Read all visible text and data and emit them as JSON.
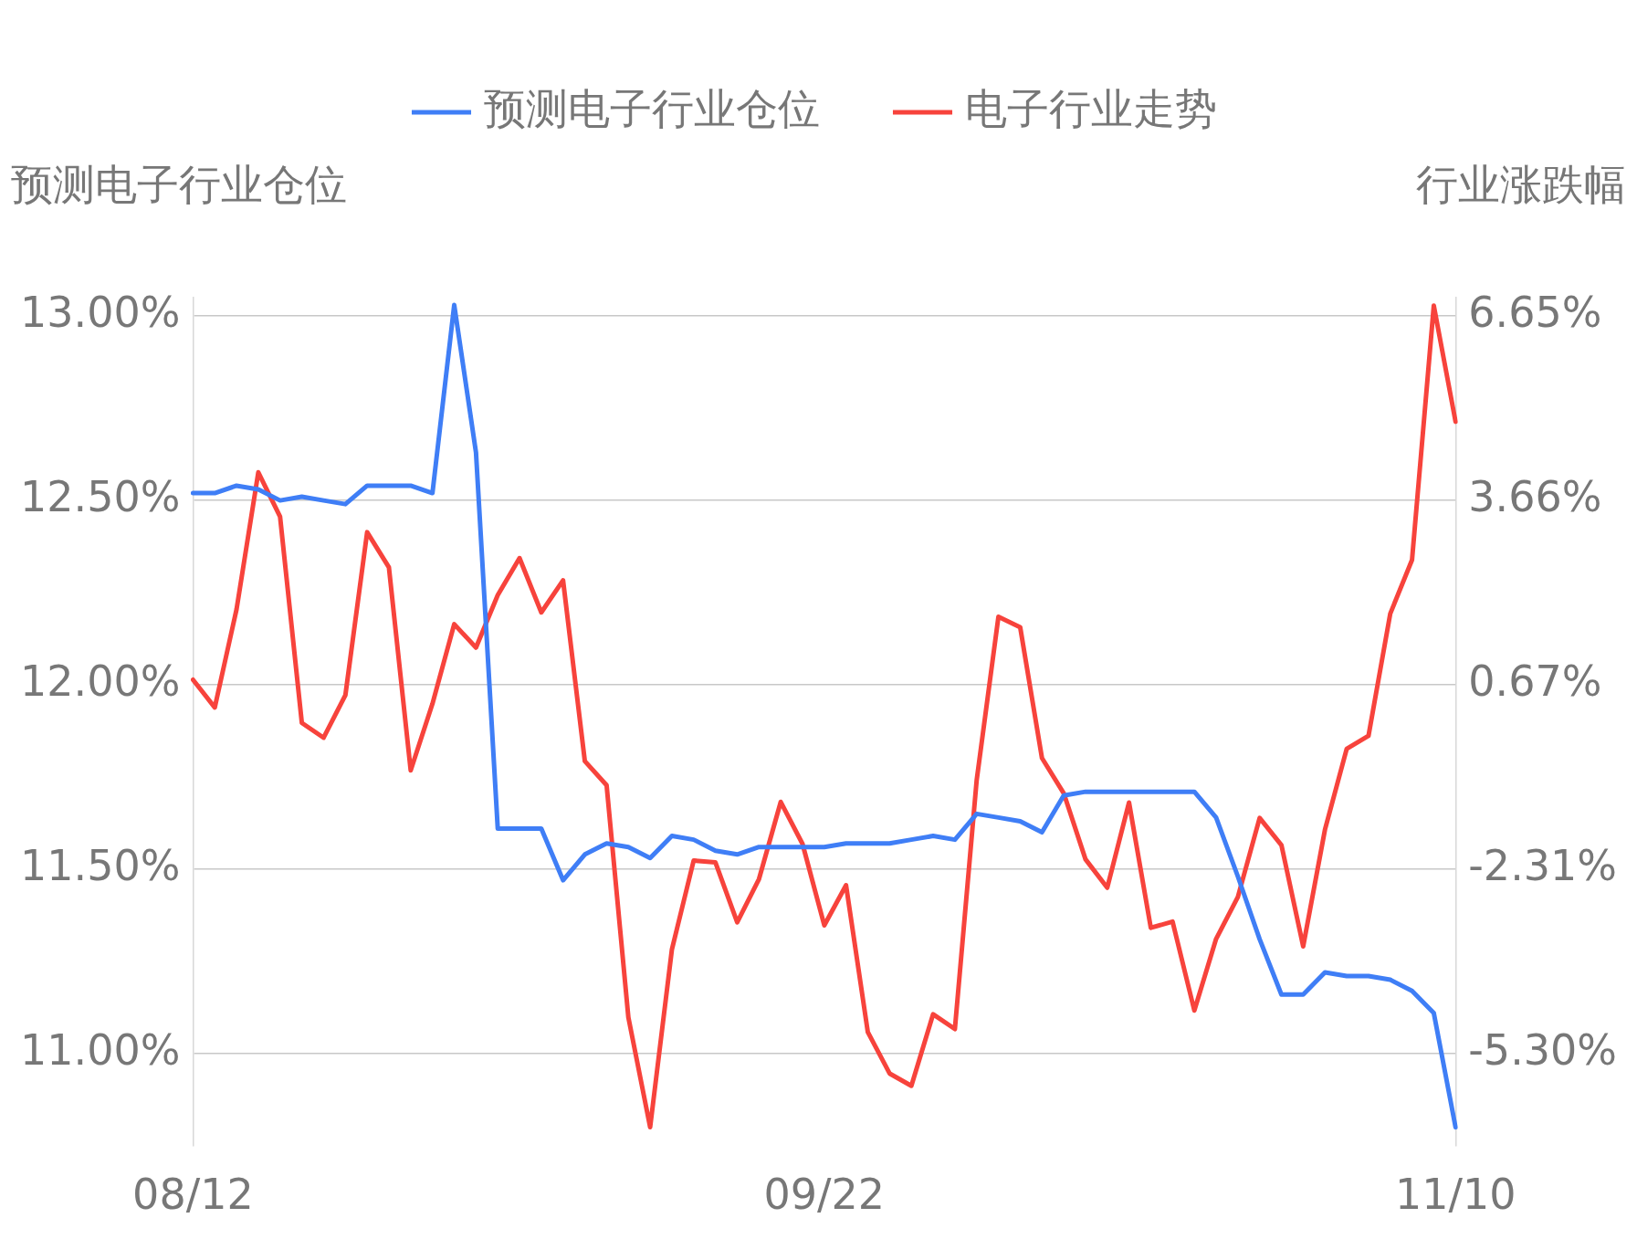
{
  "chart_data": {
    "type": "line",
    "ylabel": "预测电子行业仓位",
    "y2label": "行业涨跌幅",
    "categories": [
      "08/12",
      null,
      null,
      null,
      null,
      null,
      null,
      null,
      null,
      null,
      null,
      null,
      null,
      null,
      null,
      null,
      null,
      null,
      null,
      null,
      null,
      null,
      null,
      null,
      null,
      null,
      null,
      null,
      null,
      "09/22",
      null,
      null,
      null,
      null,
      null,
      null,
      null,
      null,
      null,
      null,
      null,
      null,
      null,
      null,
      null,
      null,
      null,
      null,
      null,
      null,
      null,
      null,
      null,
      null,
      null,
      null,
      null,
      null,
      "11/10"
    ],
    "series": [
      {
        "name": "预测电子行业仓位",
        "color": "#3f7ef6",
        "values": [
          12.52,
          12.52,
          12.54,
          12.53,
          12.5,
          12.51,
          12.5,
          12.49,
          12.54,
          12.54,
          12.54,
          12.52,
          13.03,
          12.63,
          11.61,
          11.61,
          11.61,
          11.47,
          11.54,
          11.57,
          11.56,
          11.53,
          11.59,
          11.58,
          11.55,
          11.54,
          11.56,
          11.56,
          11.56,
          11.56,
          11.57,
          11.57,
          11.57,
          11.58,
          11.59,
          11.58,
          11.65,
          11.64,
          11.63,
          11.6,
          11.7,
          11.71,
          11.71,
          11.71,
          11.71,
          11.71,
          11.71,
          11.64,
          11.48,
          11.31,
          11.16,
          11.16,
          11.22,
          11.21,
          11.21,
          11.2,
          11.17,
          11.11,
          10.8
        ]
      },
      {
        "name": "电子行业走势",
        "color": "#f7433c",
        "axis": "y2",
        "values": [
          0.76,
          0.31,
          1.9,
          4.12,
          3.4,
          0.06,
          -0.18,
          0.51,
          3.15,
          2.58,
          -0.71,
          0.37,
          1.66,
          1.28,
          2.13,
          2.73,
          1.85,
          2.37,
          -0.56,
          -0.95,
          -4.71,
          -6.49,
          -3.61,
          -2.17,
          -2.2,
          -3.17,
          -2.47,
          -1.22,
          -1.9,
          -3.22,
          -2.57,
          -4.95,
          -5.62,
          -5.82,
          -4.66,
          -4.9,
          -0.87,
          1.78,
          1.61,
          -0.51,
          -1.08,
          -2.15,
          -2.61,
          -1.23,
          -3.26,
          -3.16,
          -4.6,
          -3.44,
          -2.76,
          -1.48,
          -1.92,
          -3.56,
          -1.67,
          -0.36,
          -0.15,
          1.83,
          2.7,
          6.82,
          4.94
        ]
      }
    ],
    "ylim": [
      10.75,
      13.05
    ],
    "yticks": [
      {
        "value": 11,
        "label": "11.00%"
      },
      {
        "value": 11.5,
        "label": "11.50%"
      },
      {
        "value": 12,
        "label": "12.00%"
      },
      {
        "value": 12.5,
        "label": "12.50%"
      },
      {
        "value": 13,
        "label": "13.00%"
      }
    ],
    "y2lim": [
      -6.79,
      6.95
    ],
    "y2ticks": [
      {
        "value": -5.3,
        "label": "-5.30%"
      },
      {
        "value": -2.31,
        "label": "-2.31%"
      },
      {
        "value": 0.67,
        "label": "0.67%"
      },
      {
        "value": 3.66,
        "label": "3.66%"
      },
      {
        "value": 6.65,
        "label": "6.65%"
      }
    ],
    "grid": "y",
    "legend": "top",
    "marker": "none",
    "line_style": "solid"
  }
}
